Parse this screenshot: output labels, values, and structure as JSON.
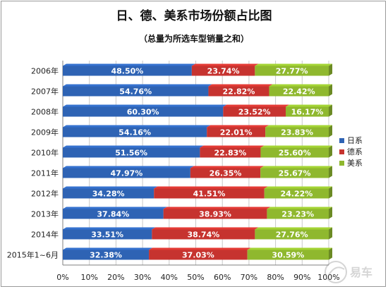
{
  "title": "日、德、美系市场份额占比图",
  "subtitle": "（总量为所选车型销量之和）",
  "colors": {
    "japanese": "#2e63b4",
    "german": "#c6332f",
    "american": "#8fb82e",
    "grid": "#c8c8c8",
    "axis": "#7f7f7f"
  },
  "chart_data": {
    "type": "bar",
    "orientation": "horizontal",
    "stacked": "percent",
    "title": "日、德、美系市场份额占比图",
    "subtitle": "（总量为所选车型销量之和）",
    "categories": [
      "2006年",
      "2007年",
      "2008年",
      "2009年",
      "2010年",
      "2011年",
      "2012年",
      "2013年",
      "2014年",
      "2015年1~6月"
    ],
    "series": [
      {
        "name": "日系",
        "color": "#2e63b4",
        "values": [
          48.5,
          54.76,
          60.3,
          54.16,
          51.56,
          47.97,
          34.28,
          37.84,
          33.51,
          32.38
        ],
        "labels": [
          "48.50%",
          "54.76%",
          "60.30%",
          "54.16%",
          "51.56%",
          "47.97%",
          "34.28%",
          "37.84%",
          "33.51%",
          "32.38%"
        ]
      },
      {
        "name": "德系",
        "color": "#c6332f",
        "values": [
          23.74,
          22.82,
          23.52,
          22.01,
          22.83,
          26.35,
          41.51,
          38.93,
          38.74,
          37.03
        ],
        "labels": [
          "23.74%",
          "22.82%",
          "23.52%",
          "22.01%",
          "22.83%",
          "26.35%",
          "41.51%",
          "38.93%",
          "38.74%",
          "37.03%"
        ]
      },
      {
        "name": "美系",
        "color": "#8fb82e",
        "values": [
          27.77,
          22.42,
          16.17,
          23.83,
          25.6,
          25.67,
          24.22,
          23.23,
          27.76,
          30.59
        ],
        "labels": [
          "27.77%",
          "22.42%",
          "16.17%",
          "23.83%",
          "25.60%",
          "25.67%",
          "24.22%",
          "23.23%",
          "27.76%",
          "30.59%"
        ]
      }
    ],
    "xlim": [
      0,
      100
    ],
    "xticks": [
      "0%",
      "10%",
      "20%",
      "30%",
      "40%",
      "50%",
      "60%",
      "70%",
      "80%",
      "90%",
      "100%"
    ],
    "grid": true,
    "legend_position": "right"
  },
  "watermark": {
    "text": "易车",
    "icon": "yiche-logo"
  }
}
